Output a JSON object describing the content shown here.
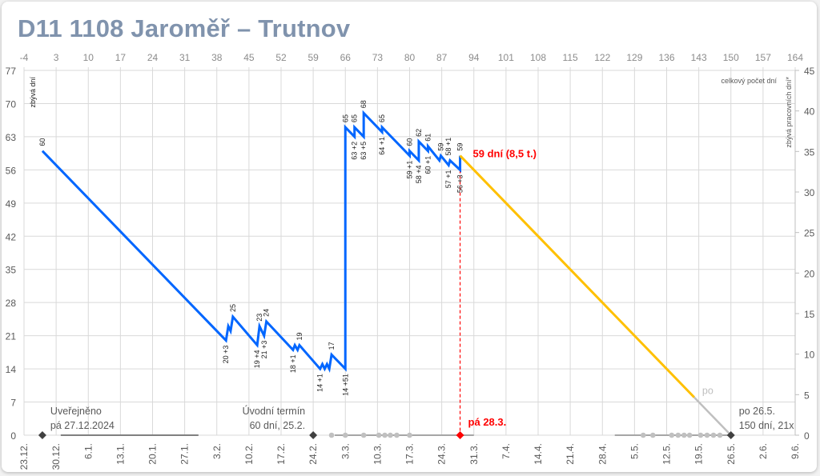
{
  "title": "D11 1108 Jaroměř – Trutnov",
  "chart_data": {
    "type": "line",
    "title": "D11 1108 Jaroměř – Trutnov",
    "left_axis_label": "zbývá dní",
    "top_axis_label": "celkový počet dní",
    "right_axis_label": "zbývá pracovních dní*",
    "xlim": [
      -4,
      164
    ],
    "x_ticks_top": [
      -4,
      3,
      10,
      17,
      24,
      31,
      38,
      45,
      52,
      59,
      66,
      73,
      80,
      87,
      94,
      101,
      108,
      115,
      122,
      129,
      136,
      143,
      150,
      157,
      164
    ],
    "x_ticks_bottom_dates": [
      "23.12.",
      "30.12.",
      "6.1.",
      "13.1.",
      "20.1.",
      "27.1.",
      "3.2.",
      "10.2.",
      "17.2.",
      "24.2.",
      "3.3.",
      "10.3.",
      "17.3.",
      "24.3.",
      "31.3.",
      "7.4.",
      "14.4.",
      "21.4.",
      "28.4.",
      "5.5.",
      "12.5.",
      "19.5.",
      "26.5.",
      "2.6.",
      "9.6."
    ],
    "ylim_left": [
      0,
      77
    ],
    "y_ticks_left": [
      0,
      7,
      14,
      21,
      28,
      35,
      42,
      49,
      56,
      63,
      70,
      77
    ],
    "ylim_right": [
      0,
      45
    ],
    "y_ticks_right": [
      0,
      5,
      10,
      15,
      20,
      25,
      30,
      35,
      40,
      45
    ],
    "grid": true,
    "colors": {
      "actual": "#0066ff",
      "forecast": "#ffc000",
      "after": "#bfbfbf",
      "today": "#ff0000",
      "milestone": "#404040",
      "dots": "#c0c0c0"
    },
    "series": [
      {
        "role": "actual",
        "points": [
          [
            0,
            60
          ],
          [
            40,
            20
          ],
          [
            40.5,
            23
          ],
          [
            41,
            22
          ],
          [
            41.5,
            25
          ],
          [
            46.8,
            19
          ],
          [
            47.3,
            23
          ],
          [
            48.3,
            21
          ],
          [
            48.8,
            24
          ],
          [
            54.6,
            18
          ],
          [
            55,
            19
          ],
          [
            55.6,
            18
          ],
          [
            56,
            19
          ],
          [
            60.5,
            14
          ],
          [
            61,
            15
          ],
          [
            61.5,
            14
          ],
          [
            62,
            15
          ],
          [
            62.5,
            14
          ],
          [
            63,
            17
          ],
          [
            66,
            14
          ],
          [
            66,
            65
          ],
          [
            68,
            63
          ],
          [
            68,
            65
          ],
          [
            70,
            63
          ],
          [
            70,
            68
          ],
          [
            74,
            64
          ],
          [
            74,
            65
          ],
          [
            80,
            59
          ],
          [
            80,
            60
          ],
          [
            82,
            58
          ],
          [
            82,
            62
          ],
          [
            84,
            60
          ],
          [
            84,
            61
          ],
          [
            86.5,
            58
          ],
          [
            86.8,
            59
          ],
          [
            88.5,
            57
          ],
          [
            88.8,
            58
          ],
          [
            91,
            56
          ],
          [
            91,
            59
          ]
        ]
      },
      {
        "role": "forecast",
        "points": [
          [
            91,
            59
          ],
          [
            142,
            8
          ]
        ]
      },
      {
        "role": "after",
        "label": "po",
        "points": [
          [
            142,
            8
          ],
          [
            150,
            0
          ]
        ]
      }
    ],
    "data_labels": [
      {
        "x": 0,
        "y": 60,
        "text": "60",
        "pos": "above"
      },
      {
        "x": 40,
        "y": 20,
        "text": "20 +3",
        "pos": "below"
      },
      {
        "x": 41.5,
        "y": 25,
        "text": "25",
        "pos": "above"
      },
      {
        "x": 46.8,
        "y": 19,
        "text": "19 +4",
        "pos": "below"
      },
      {
        "x": 47.3,
        "y": 23,
        "text": "23",
        "pos": "above"
      },
      {
        "x": 48.3,
        "y": 21,
        "text": "21 +3",
        "pos": "below"
      },
      {
        "x": 48.8,
        "y": 24,
        "text": "24",
        "pos": "above"
      },
      {
        "x": 54.6,
        "y": 18,
        "text": "18 +1",
        "pos": "below"
      },
      {
        "x": 56,
        "y": 19,
        "text": "19",
        "pos": "above"
      },
      {
        "x": 60.5,
        "y": 14,
        "text": "14 +1",
        "pos": "below"
      },
      {
        "x": 63,
        "y": 17,
        "text": "17",
        "pos": "above"
      },
      {
        "x": 66,
        "y": 14,
        "text": "14 +51",
        "pos": "below"
      },
      {
        "x": 66,
        "y": 65,
        "text": "65",
        "pos": "above"
      },
      {
        "x": 68,
        "y": 63,
        "text": "63 +2",
        "pos": "below"
      },
      {
        "x": 68,
        "y": 65,
        "text": "65",
        "pos": "above"
      },
      {
        "x": 70,
        "y": 63,
        "text": "63 +5",
        "pos": "below"
      },
      {
        "x": 70,
        "y": 68,
        "text": "68",
        "pos": "above"
      },
      {
        "x": 74,
        "y": 64,
        "text": "64 +1",
        "pos": "below"
      },
      {
        "x": 74,
        "y": 65,
        "text": "65",
        "pos": "above"
      },
      {
        "x": 80,
        "y": 59,
        "text": "59 +1",
        "pos": "below"
      },
      {
        "x": 80,
        "y": 60,
        "text": "60",
        "pos": "above"
      },
      {
        "x": 82,
        "y": 58,
        "text": "58 +4",
        "pos": "below"
      },
      {
        "x": 82,
        "y": 62,
        "text": "62",
        "pos": "above"
      },
      {
        "x": 84,
        "y": 60,
        "text": "60 +1",
        "pos": "below"
      },
      {
        "x": 84,
        "y": 61,
        "text": "61",
        "pos": "above"
      },
      {
        "x": 86.8,
        "y": 59,
        "text": "59",
        "pos": "above"
      },
      {
        "x": 88.5,
        "y": 58,
        "text": "58 +1",
        "pos": "above"
      },
      {
        "x": 88.5,
        "y": 57,
        "text": "57 +1",
        "pos": "below"
      },
      {
        "x": 91,
        "y": 56,
        "text": "56 +3",
        "pos": "below"
      },
      {
        "x": 91,
        "y": 59,
        "text": "59",
        "pos": "above"
      }
    ],
    "timeline_bars": [
      {
        "from": 4,
        "to": 34,
        "color": "#808080"
      },
      {
        "from": 63.7,
        "to": 94,
        "color": "#a6a6a6"
      },
      {
        "from": 124.7,
        "to": 150,
        "color": "#a6a6a6"
      }
    ],
    "timeline_dots": [
      63,
      66,
      70,
      73.3,
      74.6,
      75.8,
      77.2,
      80,
      130.9,
      133,
      137.1,
      138.5,
      139.8,
      141,
      143.4,
      144.8,
      146.2,
      147.6
    ],
    "milestones": [
      {
        "x": 0,
        "lines": [
          "Uveřejněno",
          "pá 27.12.2024"
        ],
        "color": "#404040"
      },
      {
        "x": 59,
        "lines": [
          "Úvodní termín",
          "60 dní, 25.2."
        ],
        "color": "#404040"
      },
      {
        "x": 91,
        "lines": [
          "pá 28.3."
        ],
        "color": "#ff0000"
      },
      {
        "x": 150,
        "lines": [
          "po 26.5.",
          "150 dní, 21x"
        ],
        "color": "#404040"
      }
    ],
    "current_annotation": {
      "x": 91,
      "y": 59,
      "text": "59 dní (8,5 t.)"
    }
  }
}
